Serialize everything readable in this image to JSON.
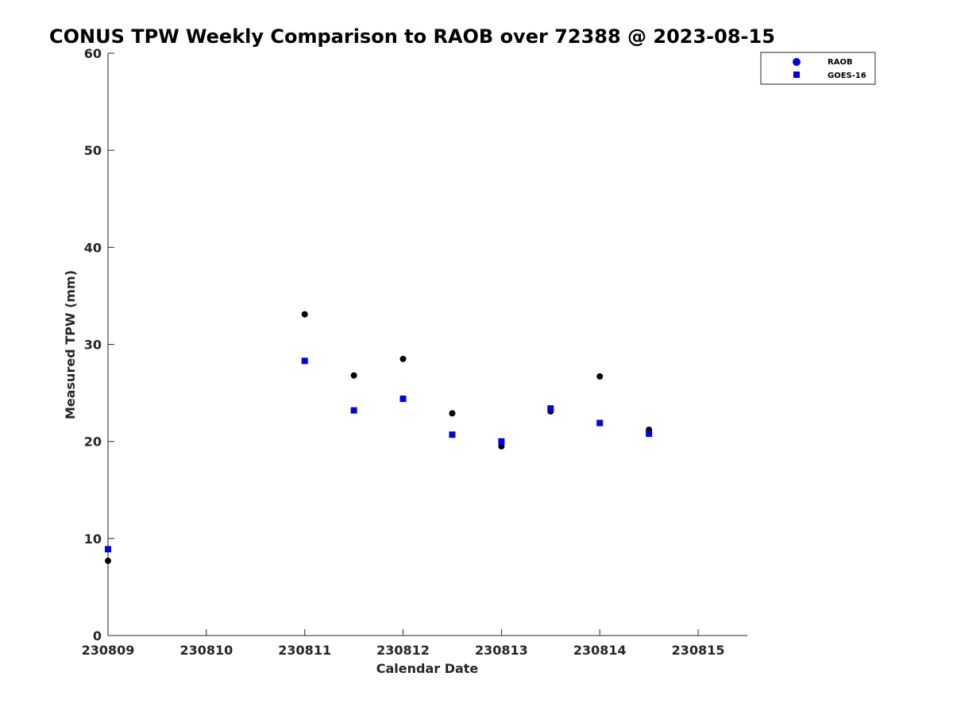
{
  "chart_data": {
    "type": "scatter",
    "title": "CONUS TPW Weekly Comparison to RAOB over 72388 @ 2023-08-15",
    "xlabel": "Calendar Date",
    "ylabel": "Measured TPW (mm)",
    "x_tick_labels": [
      "230809",
      "230810",
      "230811",
      "230812",
      "230813",
      "230814",
      "230815"
    ],
    "y_ticks": [
      0,
      10,
      20,
      30,
      40,
      50,
      60
    ],
    "xlim": [
      "2023-08-09 00:00",
      "2023-08-15 12:00"
    ],
    "ylim": [
      0,
      60
    ],
    "grid": false,
    "legend_position": "top-right",
    "series": [
      {
        "name": "RAOB",
        "marker": "circle",
        "color": "#000000",
        "legend_color": "#0000e6",
        "points": [
          {
            "x": "2023-08-09 00:00",
            "y": 7.7
          },
          {
            "x": "2023-08-11 00:00",
            "y": 33.1
          },
          {
            "x": "2023-08-11 12:00",
            "y": 26.8
          },
          {
            "x": "2023-08-12 00:00",
            "y": 28.5
          },
          {
            "x": "2023-08-12 12:00",
            "y": 22.9
          },
          {
            "x": "2023-08-13 00:00",
            "y": 19.5
          },
          {
            "x": "2023-08-13 12:00",
            "y": 23.1
          },
          {
            "x": "2023-08-14 00:00",
            "y": 26.7
          },
          {
            "x": "2023-08-14 12:00",
            "y": 21.2
          }
        ]
      },
      {
        "name": "GOES-16",
        "marker": "square",
        "color": "#0000e6",
        "legend_color": "#0000e6",
        "points": [
          {
            "x": "2023-08-09 00:00",
            "y": 8.9
          },
          {
            "x": "2023-08-11 00:00",
            "y": 28.3
          },
          {
            "x": "2023-08-11 12:00",
            "y": 23.2
          },
          {
            "x": "2023-08-12 00:00",
            "y": 24.4
          },
          {
            "x": "2023-08-12 12:00",
            "y": 20.7
          },
          {
            "x": "2023-08-13 00:00",
            "y": 20.0
          },
          {
            "x": "2023-08-13 12:00",
            "y": 23.4
          },
          {
            "x": "2023-08-14 00:00",
            "y": 21.9
          },
          {
            "x": "2023-08-14 12:00",
            "y": 20.8
          }
        ]
      }
    ]
  }
}
